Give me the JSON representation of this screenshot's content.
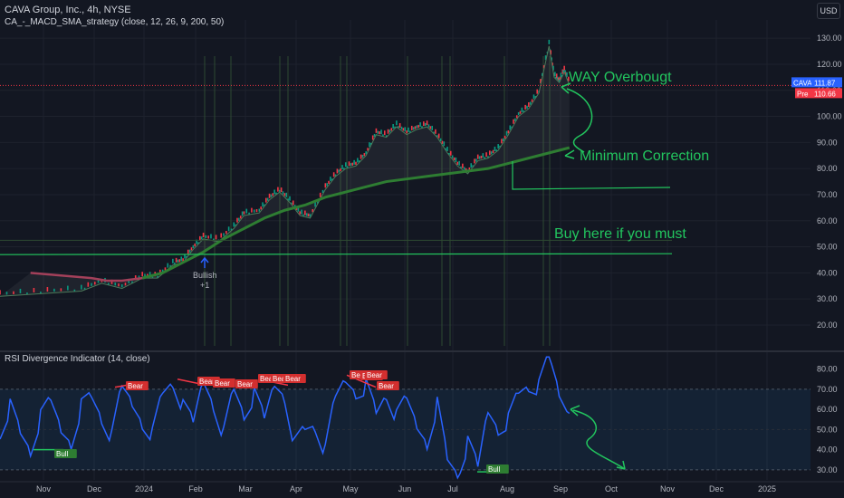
{
  "header": {
    "symbol_line": "CAVA Group, Inc., 4h, NYSE",
    "strategy_line": "CA_-_MACD_SMA_strategy (close, 12, 26, 9, 200, 50)",
    "currency": "USD"
  },
  "price_badges": {
    "last_label": "CAVA",
    "last_value": "111.87",
    "pre_label": "Pre",
    "pre_value": "110.66",
    "last_color": "#2962ff",
    "pre_color": "#f23645"
  },
  "chart_data": [
    {
      "type": "line",
      "ylim": [
        12,
        137
      ],
      "yticks": [
        20,
        30,
        40,
        50,
        60,
        70,
        80,
        90,
        100,
        110,
        120,
        130
      ],
      "ytick_labels": [
        "20.00",
        "30.00",
        "40.00",
        "50.00",
        "60.00",
        "70.00",
        "80.00",
        "90.00",
        "100.00",
        "110.00",
        "120.00",
        "130.00"
      ],
      "x_months": [
        "Nov",
        "Dec",
        "2024",
        "Feb",
        "Mar",
        "Apr",
        "May",
        "Jun",
        "Jul",
        "Aug",
        "Sep",
        "Oct",
        "Nov",
        "Dec",
        "2025"
      ],
      "series": [
        {
          "points": [
            [
              0,
              31
            ],
            [
              4,
              32
            ],
            [
              8,
              33
            ],
            [
              10,
              36
            ],
            [
              12,
              34
            ],
            [
              14,
              38
            ],
            [
              15.5,
              38
            ],
            [
              17,
              43
            ],
            [
              18,
              44
            ],
            [
              19,
              49
            ],
            [
              20,
              53
            ],
            [
              21.5,
              52
            ],
            [
              23,
              57
            ],
            [
              24,
              62
            ],
            [
              25.5,
              63
            ],
            [
              26.5,
              68
            ],
            [
              27.5,
              71
            ],
            [
              28.5,
              67
            ],
            [
              29.5,
              62
            ],
            [
              30.5,
              61
            ],
            [
              32,
              72
            ],
            [
              33,
              77
            ],
            [
              34,
              80
            ],
            [
              35,
              81
            ],
            [
              36,
              85
            ],
            [
              37,
              93
            ],
            [
              38,
              92
            ],
            [
              39,
              96
            ],
            [
              40,
              93
            ],
            [
              41,
              95
            ],
            [
              42,
              96
            ],
            [
              43,
              92
            ],
            [
              44,
              86
            ],
            [
              45,
              81
            ],
            [
              46,
              78
            ],
            [
              47,
              83
            ],
            [
              48,
              84
            ],
            [
              49,
              87
            ],
            [
              50,
              93
            ],
            [
              51,
              100
            ],
            [
              52,
              103
            ],
            [
              53,
              109
            ],
            [
              54,
              127
            ],
            [
              54.5,
              115
            ],
            [
              55,
              113
            ],
            [
              55.5,
              117
            ],
            [
              56,
              112
            ]
          ]
        },
        {
          "points": [
            [
              3,
              40
            ],
            [
              6,
              39
            ],
            [
              9,
              38
            ],
            [
              10.5,
              37
            ],
            [
              12,
              37
            ],
            [
              14,
              38
            ],
            [
              16,
              40
            ],
            [
              18,
              44
            ],
            [
              20,
              48
            ],
            [
              22,
              53
            ],
            [
              24,
              57
            ],
            [
              26,
              61
            ],
            [
              28,
              64
            ],
            [
              30,
              66
            ],
            [
              32,
              69
            ],
            [
              34,
              71
            ],
            [
              36,
              73
            ],
            [
              38,
              75
            ],
            [
              40,
              76
            ],
            [
              42,
              77
            ],
            [
              44,
              78
            ],
            [
              46,
              79
            ],
            [
              48,
              80
            ],
            [
              50,
              82
            ],
            [
              52,
              84
            ],
            [
              54,
              86
            ],
            [
              56,
              88
            ]
          ]
        }
      ],
      "annotations": [
        "WAY Overbougt",
        "Minimum Correction",
        "Buy here if you must",
        "Bullish",
        "+1"
      ],
      "reference_lines": [
        47,
        72
      ]
    },
    {
      "type": "line",
      "title": "RSI Divergence Indicator (14, close)",
      "ylim": [
        25,
        87
      ],
      "yticks": [
        30,
        40,
        50,
        60,
        70,
        80
      ],
      "ytick_labels": [
        "30.00",
        "40.00",
        "50.00",
        "60.00",
        "70.00",
        "80.00"
      ],
      "band": [
        30,
        70
      ],
      "series": [
        {
          "points": [
            [
              0,
              50
            ],
            [
              1,
              62
            ],
            [
              2,
              48
            ],
            [
              3,
              40
            ],
            [
              4,
              55
            ],
            [
              5,
              63
            ],
            [
              6,
              50
            ],
            [
              7,
              45
            ],
            [
              8,
              62
            ],
            [
              9,
              66
            ],
            [
              10,
              56
            ],
            [
              11,
              45
            ],
            [
              12,
              70
            ],
            [
              13,
              63
            ],
            [
              14,
              55
            ],
            [
              15,
              48
            ],
            [
              16,
              68
            ],
            [
              17,
              74
            ],
            [
              18,
              60
            ],
            [
              19,
              52
            ],
            [
              20,
              75
            ],
            [
              21,
              64
            ],
            [
              22,
              48
            ],
            [
              23,
              70
            ],
            [
              24,
              58
            ],
            [
              25,
              66
            ],
            [
              26,
              54
            ],
            [
              27,
              73
            ],
            [
              28,
              68
            ],
            [
              29,
              43
            ],
            [
              30,
              50
            ],
            [
              31,
              52
            ],
            [
              32,
              38
            ],
            [
              33,
              65
            ],
            [
              34,
              75
            ],
            [
              35,
              70
            ],
            [
              36,
              72
            ],
            [
              37,
              58
            ],
            [
              38,
              68
            ],
            [
              39,
              55
            ],
            [
              40,
              64
            ],
            [
              41,
              52
            ],
            [
              42,
              45
            ],
            [
              43,
              63
            ],
            [
              44,
              35
            ],
            [
              45,
              28
            ],
            [
              46,
              42
            ],
            [
              47,
              30
            ],
            [
              48,
              60
            ],
            [
              49,
              52
            ],
            [
              50,
              55
            ],
            [
              51,
              68
            ],
            [
              52,
              72
            ],
            [
              53,
              70
            ],
            [
              54,
              85
            ],
            [
              55,
              68
            ],
            [
              56,
              58
            ]
          ]
        }
      ],
      "signals": [
        "Bull",
        "Bear",
        "Bear",
        "Bear",
        "Bear",
        "Bear",
        "Bear",
        "Bear",
        "Bear",
        "Bear",
        "Bear",
        "Bear",
        "Bull"
      ]
    }
  ]
}
